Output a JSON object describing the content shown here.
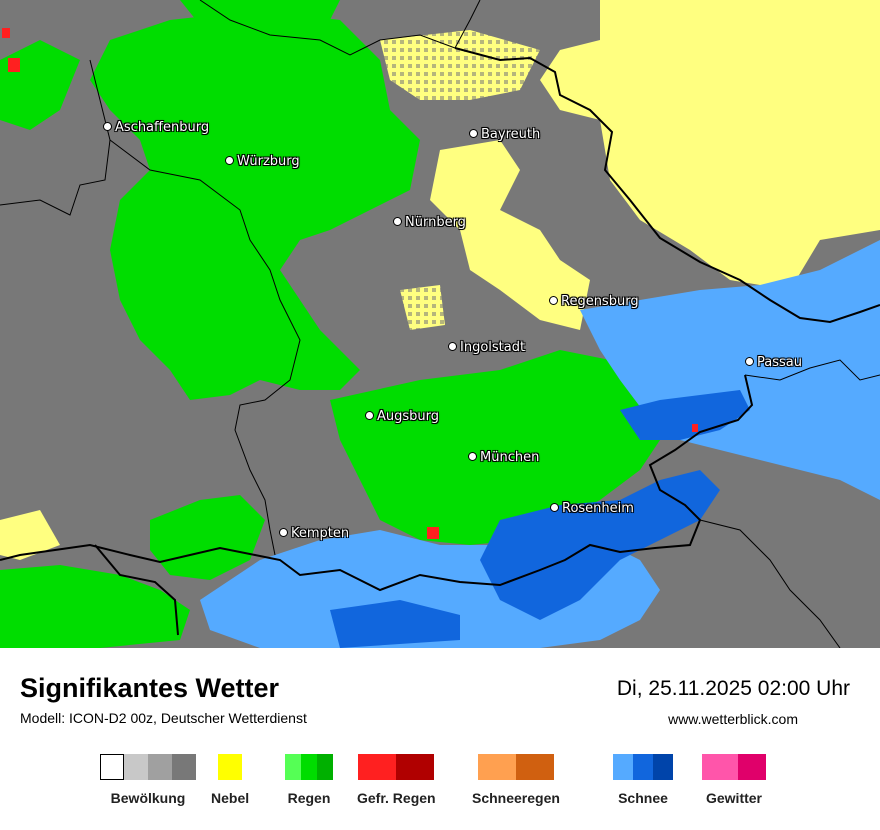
{
  "map": {
    "cities": [
      {
        "id": "aschaffenburg",
        "name": "Aschaffenburg"
      },
      {
        "id": "wuerzburg",
        "name": "Würzburg"
      },
      {
        "id": "bayreuth",
        "name": "Bayreuth"
      },
      {
        "id": "nuernberg",
        "name": "Nürnberg"
      },
      {
        "id": "regensburg",
        "name": "Regensburg"
      },
      {
        "id": "ingolstadt",
        "name": "Ingolstadt"
      },
      {
        "id": "passau",
        "name": "Passau"
      },
      {
        "id": "augsburg",
        "name": "Augsburg"
      },
      {
        "id": "muenchen",
        "name": "München"
      },
      {
        "id": "rosenheim",
        "name": "Rosenheim"
      },
      {
        "id": "kempten",
        "name": "Kempten"
      }
    ],
    "colors": {
      "cloud": "#787878",
      "fog": "#ffff80",
      "rain": "#00dd00",
      "rain_dark": "#00c000",
      "freezing_rain": "#ff2020",
      "snow": "#55aaff",
      "snow_dark": "#1166dd",
      "border": "#000000"
    }
  },
  "footer": {
    "title": "Signifikantes Wetter",
    "model": "Modell: ICON-D2 00z, Deutscher Wetterdienst",
    "datetime": "Di, 25.11.2025 02:00 Uhr",
    "website": "www.wetterblick.com"
  },
  "legend": [
    {
      "id": "bewoelkung",
      "label": "Bewölkung",
      "colors": [
        "#ffffff",
        "#c8c8c8",
        "#a0a0a0",
        "#787878"
      ]
    },
    {
      "id": "nebel",
      "label": "Nebel",
      "colors": [
        "#ffff00"
      ]
    },
    {
      "id": "regen",
      "label": "Regen",
      "colors": [
        "#55ff55",
        "#00dd00",
        "#00b000"
      ]
    },
    {
      "id": "gefr-regen",
      "label": "Gefr. Regen",
      "colors": [
        "#ff2020",
        "#b00000"
      ]
    },
    {
      "id": "schneeregen",
      "label": "Schneeregen",
      "colors": [
        "#ffa050",
        "#d06010"
      ]
    },
    {
      "id": "schnee",
      "label": "Schnee",
      "colors": [
        "#55aaff",
        "#1166dd",
        "#0044aa"
      ]
    },
    {
      "id": "gewitter",
      "label": "Gewitter",
      "colors": [
        "#ff55aa",
        "#e0006a"
      ]
    }
  ]
}
